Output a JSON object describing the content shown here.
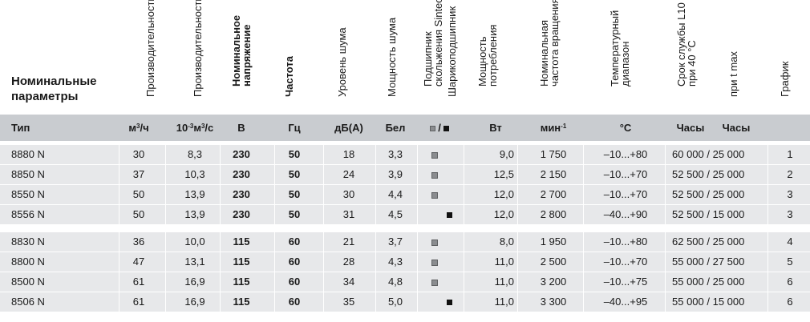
{
  "header": {
    "title_line1": "Номинальные",
    "title_line2": "параметры",
    "columns": [
      {
        "id": "flow1",
        "lines": [
          "Производительность"
        ],
        "bold": false
      },
      {
        "id": "flow2",
        "lines": [
          "Производительность"
        ],
        "bold": false
      },
      {
        "id": "voltage",
        "lines": [
          "Номинальное",
          "напряжение"
        ],
        "bold": true
      },
      {
        "id": "freq",
        "lines": [
          "Частота"
        ],
        "bold": true
      },
      {
        "id": "noise",
        "lines": [
          "Уровень шума"
        ],
        "bold": false
      },
      {
        "id": "power_noise",
        "lines": [
          "Мощность шума"
        ],
        "bold": false
      },
      {
        "id": "bearing",
        "lines": [
          "Подшипник",
          "скольжения Sintec"
        ],
        "bold": false
      },
      {
        "id": "ball_bearing",
        "lines": [
          "Шарикоподшипник"
        ],
        "bold": false
      },
      {
        "id": "power",
        "lines": [
          "Мощность",
          "потребления"
        ],
        "bold": false
      },
      {
        "id": "rpm",
        "lines": [
          "Номинальная",
          "частота вращения"
        ],
        "bold": false
      },
      {
        "id": "temp",
        "lines": [
          "Температурный",
          "диапазон"
        ],
        "bold": false
      },
      {
        "id": "life",
        "lines": [
          "Срок службы L10",
          "при 40 °C"
        ],
        "bold": false
      },
      {
        "id": "life_tmax",
        "lines": [
          "при t max"
        ],
        "bold": false
      },
      {
        "id": "graph",
        "lines": [
          "График"
        ],
        "bold": false
      }
    ]
  },
  "units": {
    "type": "Тип",
    "flow1": "м³/ч",
    "flow2": "10⁻³м³/с",
    "voltage": "В",
    "freq": "Гц",
    "noise": "дБ(А)",
    "power_noise": "Бел",
    "bearing": "□/■",
    "power": "Вт",
    "rpm": "мин⁻¹",
    "temp": "°C",
    "life1": "Часы",
    "life2": "Часы"
  },
  "rows": [
    {
      "type": "8880 N",
      "flow1": "30",
      "flow2": "8,3",
      "voltage": "230",
      "freq": "50",
      "noise": "18",
      "bel": "3,3",
      "bearing": "grey",
      "power": "9,0",
      "rpm": "1 750",
      "temp": "–10...+80",
      "life": "60 000 / 25 000",
      "graph": "1"
    },
    {
      "type": "8850 N",
      "flow1": "37",
      "flow2": "10,3",
      "voltage": "230",
      "freq": "50",
      "noise": "24",
      "bel": "3,9",
      "bearing": "grey",
      "power": "12,5",
      "rpm": "2 150",
      "temp": "–10...+70",
      "life": "52 500 / 25 000",
      "graph": "2"
    },
    {
      "type": "8550 N",
      "flow1": "50",
      "flow2": "13,9",
      "voltage": "230",
      "freq": "50",
      "noise": "30",
      "bel": "4,4",
      "bearing": "grey",
      "power": "12,0",
      "rpm": "2 700",
      "temp": "–10...+70",
      "life": "52 500 / 25 000",
      "graph": "3"
    },
    {
      "type": "8556 N",
      "flow1": "50",
      "flow2": "13,9",
      "voltage": "230",
      "freq": "50",
      "noise": "31",
      "bel": "4,5",
      "bearing": "black",
      "power": "12,0",
      "rpm": "2 800",
      "temp": "–40...+90",
      "life": "52 500 / 15 000",
      "graph": "3"
    },
    {
      "type": "8830 N",
      "flow1": "36",
      "flow2": "10,0",
      "voltage": "115",
      "freq": "60",
      "noise": "21",
      "bel": "3,7",
      "bearing": "grey",
      "power": "8,0",
      "rpm": "1 950",
      "temp": "–10...+80",
      "life": "62 500 / 25 000",
      "graph": "4"
    },
    {
      "type": "8800 N",
      "flow1": "47",
      "flow2": "13,1",
      "voltage": "115",
      "freq": "60",
      "noise": "28",
      "bel": "4,3",
      "bearing": "grey",
      "power": "11,0",
      "rpm": "2 500",
      "temp": "–10...+70",
      "life": "55 000 / 27 500",
      "graph": "5"
    },
    {
      "type": "8500 N",
      "flow1": "61",
      "flow2": "16,9",
      "voltage": "115",
      "freq": "60",
      "noise": "34",
      "bel": "4,8",
      "bearing": "grey",
      "power": "11,0",
      "rpm": "3 200",
      "temp": "–10...+75",
      "life": "55 000 / 25 000",
      "graph": "6"
    },
    {
      "type": "8506 N",
      "flow1": "61",
      "flow2": "16,9",
      "voltage": "115",
      "freq": "60",
      "noise": "35",
      "bel": "5,0",
      "bearing": "black",
      "power": "11,0",
      "rpm": "3 300",
      "temp": "–40...+95",
      "life": "55 000 / 15 000",
      "graph": "6"
    }
  ]
}
